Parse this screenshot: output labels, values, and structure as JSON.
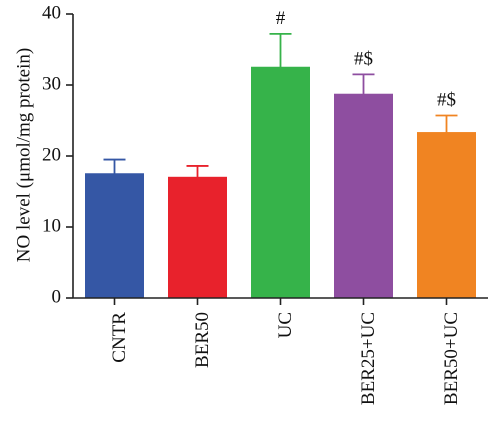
{
  "chart_data": {
    "type": "bar",
    "ylabel": "NO level (μmol/mg protein)",
    "ylim": [
      0,
      40
    ],
    "yticks": [
      0,
      10,
      20,
      30,
      40
    ],
    "categories": [
      "CNTR",
      "BER50",
      "UC",
      "BER25+UC",
      "BER50+UC"
    ],
    "values": [
      17.5,
      17.0,
      32.5,
      28.7,
      23.3
    ],
    "errors": [
      2.0,
      1.6,
      4.7,
      2.8,
      2.4
    ],
    "annotations": [
      "",
      "",
      "#",
      "#$",
      "#$"
    ],
    "colors": [
      "#3557a5",
      "#e8222c",
      "#36b34a",
      "#8e4ea0",
      "#f08422"
    ],
    "grid": false,
    "legend": "none"
  }
}
